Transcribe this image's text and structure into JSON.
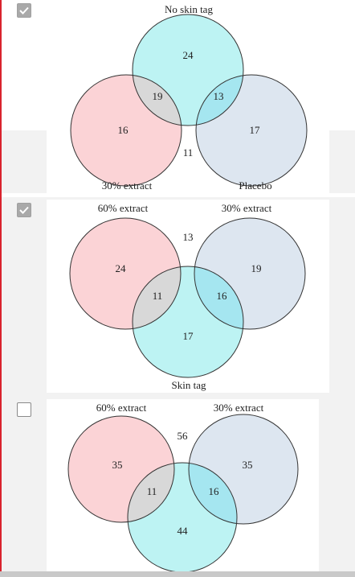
{
  "questions": [
    {
      "checked": true,
      "labels": {
        "top": "No skin tag",
        "bottom_left": "30% extract",
        "bottom_right": "Placebo"
      },
      "values": {
        "a": "24",
        "ab": "19",
        "ac": "13",
        "b": "16",
        "c": "17",
        "outside": "11"
      }
    },
    {
      "checked": true,
      "labels": {
        "top_left": "60% extract",
        "top_right": "30% extract",
        "bottom": "Skin tag"
      },
      "values": {
        "outside": "13",
        "a": "24",
        "b": "19",
        "ab": "11",
        "bc": "16",
        "c": "17"
      }
    },
    {
      "checked": false,
      "labels": {
        "top_left": "60% extract",
        "top_right": "30% extract"
      },
      "values": {
        "outside": "56",
        "a": "35",
        "b": "35",
        "ac": "11",
        "bc": "16",
        "c": "44"
      }
    }
  ],
  "colors": {
    "pink": "#fbd3d6",
    "blue_gray": "#dde6f0",
    "cyan": "#bdf3f3",
    "pink_cyan": "#d8d8d8",
    "blue_cyan": "#a5e6f0",
    "checkbox_checked": "#a9a9a9",
    "accent": "#d9232e"
  }
}
